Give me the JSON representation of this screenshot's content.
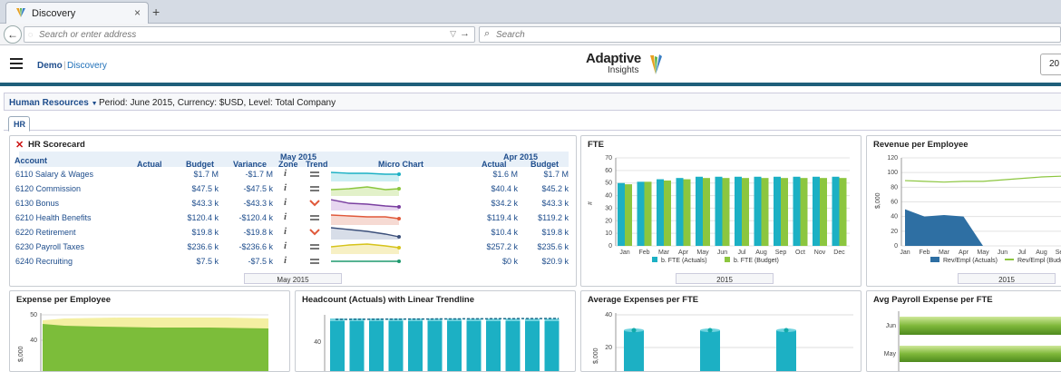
{
  "browser": {
    "tab_title": "Discovery",
    "url_placeholder": "Search or enter address",
    "search_placeholder": "Search",
    "new_tab": "+",
    "close": "×",
    "back": "←"
  },
  "app": {
    "crumb_company": "Demo",
    "crumb_page": "Discovery",
    "logo_main": "Adaptive",
    "logo_sub": "Insights",
    "year_partial": "20"
  },
  "filter": {
    "sheet": "Human Resources",
    "period": "Period: June 2015, Currency: $USD, Level: Total Company"
  },
  "tab": "HR",
  "colors": {
    "teal": "#1cb0c4",
    "green": "#8cc63f",
    "dark_blue": "#2e6fa3",
    "brand": "#1f5f7a"
  },
  "scorecard": {
    "title": "HR Scorecard",
    "group1": "May 2015",
    "group2": "Apr 2015",
    "headers": {
      "account": "Account",
      "actual": "Actual",
      "budget": "Budget",
      "variance": "Variance",
      "zone": "Zone",
      "trend": "Trend",
      "micro": "Micro Chart",
      "actual2": "Actual",
      "budget2": "Budget"
    },
    "footer": "May 2015",
    "rows": [
      {
        "account": "6110 Salary & Wages",
        "actual": "",
        "budget": "$1.7 M",
        "variance": "-$1.7 M",
        "trend": "flat",
        "actual2": "$1.6 M",
        "budget2": "$1.7 M"
      },
      {
        "account": "6120 Commission",
        "actual": "",
        "budget": "$47.5 k",
        "variance": "-$47.5 k",
        "trend": "flat",
        "actual2": "$40.4 k",
        "budget2": "$45.2 k"
      },
      {
        "account": "6130 Bonus",
        "actual": "",
        "budget": "$43.3 k",
        "variance": "-$43.3 k",
        "trend": "down",
        "actual2": "$34.2 k",
        "budget2": "$43.3 k"
      },
      {
        "account": "6210 Health Benefits",
        "actual": "",
        "budget": "$120.4 k",
        "variance": "-$120.4 k",
        "trend": "flat",
        "actual2": "$119.4 k",
        "budget2": "$119.2 k"
      },
      {
        "account": "6220 Retirement",
        "actual": "",
        "budget": "$19.8 k",
        "variance": "-$19.8 k",
        "trend": "down",
        "actual2": "$10.4 k",
        "budget2": "$19.8 k"
      },
      {
        "account": "6230 Payroll Taxes",
        "actual": "",
        "budget": "$236.6 k",
        "variance": "-$236.6 k",
        "trend": "flat",
        "actual2": "$257.2 k",
        "budget2": "$235.6 k"
      },
      {
        "account": "6240 Recruiting",
        "actual": "",
        "budget": "$7.5 k",
        "variance": "-$7.5 k",
        "trend": "flat",
        "actual2": "$0 k",
        "budget2": "$20.9 k"
      }
    ]
  },
  "panels": {
    "fte": {
      "title": "FTE",
      "footer": "2015",
      "ylabel": "#"
    },
    "rev": {
      "title": "Revenue per Employee",
      "footer": "2015",
      "ylabel": "$,000"
    },
    "exp": {
      "title": "Expense per Employee",
      "ylabel": "$,000"
    },
    "head": {
      "title": "Headcount (Actuals) with Linear Trendline"
    },
    "avg": {
      "title": "Average Expenses per FTE",
      "ylabel": "$,000"
    },
    "pay": {
      "title": "Avg Payroll Expense per FTE"
    }
  },
  "chart_data": [
    {
      "type": "bar",
      "title": "FTE",
      "categories": [
        "Jan",
        "Feb",
        "Mar",
        "Apr",
        "May",
        "Jun",
        "Jul",
        "Aug",
        "Sep",
        "Oct",
        "Nov",
        "Dec"
      ],
      "series": [
        {
          "name": "b. FTE (Actuals)",
          "values": [
            50,
            51,
            53,
            54,
            55,
            55,
            55,
            55,
            55,
            55,
            55,
            55
          ]
        },
        {
          "name": "b. FTE (Budget)",
          "values": [
            49,
            51,
            52,
            53,
            54,
            54,
            54,
            54,
            54,
            54,
            54,
            54
          ]
        }
      ],
      "ylim": [
        0,
        70
      ],
      "yticks": [
        0,
        10,
        20,
        30,
        40,
        50,
        60,
        70
      ],
      "ylabel": "#",
      "legend": "bottom",
      "xlabel": "2015"
    },
    {
      "type": "area",
      "title": "Revenue per Employee",
      "categories": [
        "Jan",
        "Feb",
        "Mar",
        "Apr",
        "May",
        "Jun",
        "Jul",
        "Aug",
        "Sep",
        "Oct",
        "Nov",
        "Dec"
      ],
      "series": [
        {
          "name": "Rev/Empl (Actuals)",
          "values": [
            50,
            40,
            42,
            40,
            0,
            null,
            null,
            null,
            null,
            null,
            null,
            null
          ]
        },
        {
          "name": "Rev/Empl (Budget)",
          "values": [
            89,
            88,
            87,
            88,
            88,
            90,
            92,
            94,
            95,
            96,
            98,
            100
          ]
        }
      ],
      "ylim": [
        0,
        120
      ],
      "yticks": [
        0,
        20,
        40,
        60,
        80,
        100,
        120
      ],
      "ylabel": "$,000",
      "legend": "bottom",
      "xlabel": "2015"
    },
    {
      "type": "area",
      "title": "Expense per Employee",
      "yticks": [
        40,
        50
      ],
      "ylabel": "$,000"
    },
    {
      "type": "bar",
      "title": "Headcount (Actuals) with Linear Trendline",
      "yticks": [
        40
      ]
    },
    {
      "type": "bar",
      "title": "Average Expenses per FTE",
      "yticks": [
        20,
        40
      ],
      "ylabel": "$,000",
      "values": [
        40,
        40,
        40
      ]
    },
    {
      "type": "bar",
      "title": "Avg Payroll Expense per FTE",
      "categories": [
        "Jun",
        "May"
      ]
    }
  ]
}
